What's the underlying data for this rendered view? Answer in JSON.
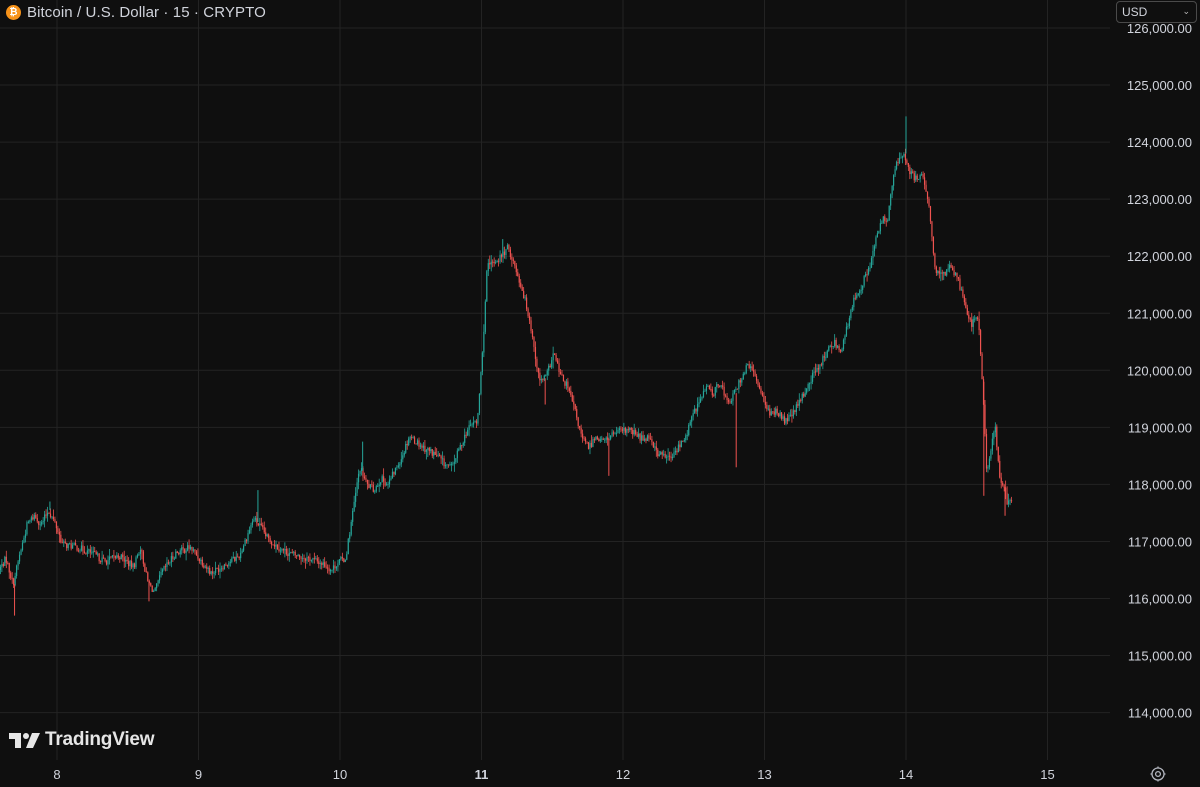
{
  "header": {
    "symbol_title": "Bitcoin / U.S. Dollar · 15 · CRYPTO",
    "coin_icon": "bitcoin-icon",
    "coin_glyph": "₿"
  },
  "currency_select": {
    "value": "USD",
    "icon": "chevron-down-icon"
  },
  "brand": {
    "name": "TradingView",
    "logo_icon": "tradingview-logo-icon"
  },
  "settings": {
    "icon": "settings-gear-icon"
  },
  "colors": {
    "background": "#0f0f0f",
    "grid": "#232323",
    "up": "#26a69a",
    "down": "#ef5350",
    "text": "#d1d4dc"
  },
  "chart_data": {
    "type": "candlestick",
    "interval": "15",
    "y_axis": {
      "ticks": [
        "114,000.00",
        "115,000.00",
        "116,000.00",
        "117,000.00",
        "118,000.00",
        "119,000.00",
        "120,000.00",
        "121,000.00",
        "122,000.00",
        "123,000.00",
        "124,000.00",
        "125,000.00",
        "126,000.00"
      ],
      "range": [
        113500,
        126000
      ]
    },
    "x_axis": {
      "ticks": [
        "8",
        "9",
        "10",
        "11",
        "12",
        "13",
        "14",
        "15"
      ],
      "bold_tick": "11",
      "range": [
        7.6,
        15.6
      ]
    },
    "price_path": [
      [
        7.6,
        116500
      ],
      [
        7.65,
        116700
      ],
      [
        7.7,
        116250
      ],
      [
        7.75,
        116800
      ],
      [
        7.8,
        117300
      ],
      [
        7.85,
        117450
      ],
      [
        7.9,
        117300
      ],
      [
        7.95,
        117550
      ],
      [
        8.0,
        117300
      ],
      [
        8.05,
        116950
      ],
      [
        8.15,
        116900
      ],
      [
        8.25,
        116800
      ],
      [
        8.35,
        116650
      ],
      [
        8.45,
        116750
      ],
      [
        8.55,
        116550
      ],
      [
        8.6,
        116900
      ],
      [
        8.65,
        116300
      ],
      [
        8.7,
        116100
      ],
      [
        8.75,
        116450
      ],
      [
        8.85,
        116800
      ],
      [
        8.95,
        116900
      ],
      [
        9.05,
        116600
      ],
      [
        9.1,
        116450
      ],
      [
        9.2,
        116600
      ],
      [
        9.3,
        116750
      ],
      [
        9.4,
        117400
      ],
      [
        9.45,
        117250
      ],
      [
        9.5,
        117050
      ],
      [
        9.6,
        116850
      ],
      [
        9.7,
        116750
      ],
      [
        9.8,
        116700
      ],
      [
        9.9,
        116600
      ],
      [
        9.95,
        116500
      ],
      [
        10.0,
        116650
      ],
      [
        10.05,
        116700
      ],
      [
        10.1,
        117500
      ],
      [
        10.15,
        118300
      ],
      [
        10.2,
        118000
      ],
      [
        10.25,
        117900
      ],
      [
        10.3,
        118100
      ],
      [
        10.35,
        118000
      ],
      [
        10.45,
        118500
      ],
      [
        10.5,
        118850
      ],
      [
        10.55,
        118750
      ],
      [
        10.6,
        118650
      ],
      [
        10.7,
        118500
      ],
      [
        10.75,
        118350
      ],
      [
        10.8,
        118300
      ],
      [
        10.85,
        118600
      ],
      [
        10.9,
        118900
      ],
      [
        10.95,
        119100
      ],
      [
        10.98,
        119050
      ],
      [
        11.02,
        120400
      ],
      [
        11.05,
        121800
      ],
      [
        11.1,
        121900
      ],
      [
        11.15,
        122000
      ],
      [
        11.2,
        122150
      ],
      [
        11.25,
        121800
      ],
      [
        11.3,
        121400
      ],
      [
        11.35,
        120900
      ],
      [
        11.42,
        119800
      ],
      [
        11.47,
        119900
      ],
      [
        11.52,
        120300
      ],
      [
        11.57,
        119900
      ],
      [
        11.62,
        119700
      ],
      [
        11.67,
        119300
      ],
      [
        11.72,
        118800
      ],
      [
        11.77,
        118650
      ],
      [
        11.82,
        118850
      ],
      [
        11.87,
        118750
      ],
      [
        11.95,
        118900
      ],
      [
        12.05,
        118950
      ],
      [
        12.15,
        118800
      ],
      [
        12.2,
        118850
      ],
      [
        12.25,
        118550
      ],
      [
        12.3,
        118500
      ],
      [
        12.35,
        118450
      ],
      [
        12.4,
        118650
      ],
      [
        12.45,
        118800
      ],
      [
        12.5,
        119200
      ],
      [
        12.55,
        119450
      ],
      [
        12.6,
        119700
      ],
      [
        12.65,
        119600
      ],
      [
        12.7,
        119800
      ],
      [
        12.75,
        119400
      ],
      [
        12.8,
        119600
      ],
      [
        12.85,
        119900
      ],
      [
        12.9,
        120100
      ],
      [
        12.95,
        119850
      ],
      [
        13.0,
        119550
      ],
      [
        13.05,
        119200
      ],
      [
        13.1,
        119300
      ],
      [
        13.15,
        119100
      ],
      [
        13.2,
        119200
      ],
      [
        13.25,
        119400
      ],
      [
        13.3,
        119650
      ],
      [
        13.35,
        119900
      ],
      [
        13.4,
        120100
      ],
      [
        13.45,
        120300
      ],
      [
        13.5,
        120500
      ],
      [
        13.55,
        120350
      ],
      [
        13.6,
        120800
      ],
      [
        13.65,
        121300
      ],
      [
        13.7,
        121500
      ],
      [
        13.75,
        121800
      ],
      [
        13.8,
        122300
      ],
      [
        13.85,
        122700
      ],
      [
        13.88,
        122600
      ],
      [
        13.92,
        123400
      ],
      [
        13.95,
        123650
      ],
      [
        14.0,
        123800
      ],
      [
        14.03,
        123500
      ],
      [
        14.07,
        123350
      ],
      [
        14.12,
        123450
      ],
      [
        14.17,
        122900
      ],
      [
        14.22,
        121700
      ],
      [
        14.27,
        121650
      ],
      [
        14.32,
        121850
      ],
      [
        14.37,
        121650
      ],
      [
        14.42,
        121250
      ],
      [
        14.47,
        120800
      ],
      [
        14.52,
        120950
      ],
      [
        14.55,
        119800
      ],
      [
        14.58,
        118250
      ],
      [
        14.61,
        118600
      ],
      [
        14.64,
        119000
      ],
      [
        14.67,
        118200
      ],
      [
        14.7,
        117950
      ],
      [
        14.73,
        117650
      ],
      [
        14.75,
        117750
      ]
    ],
    "extremes": [
      [
        7.7,
        115700,
        "low"
      ],
      [
        7.95,
        117700,
        "high"
      ],
      [
        8.65,
        115950,
        "low"
      ],
      [
        9.42,
        117900,
        "high"
      ],
      [
        10.16,
        118750,
        "high"
      ],
      [
        11.15,
        122300,
        "high"
      ],
      [
        11.45,
        119400,
        "low"
      ],
      [
        11.9,
        118150,
        "low"
      ],
      [
        12.8,
        118300,
        "low"
      ],
      [
        14.0,
        124450,
        "high"
      ],
      [
        14.55,
        117800,
        "low"
      ],
      [
        14.7,
        117450,
        "low"
      ]
    ]
  }
}
